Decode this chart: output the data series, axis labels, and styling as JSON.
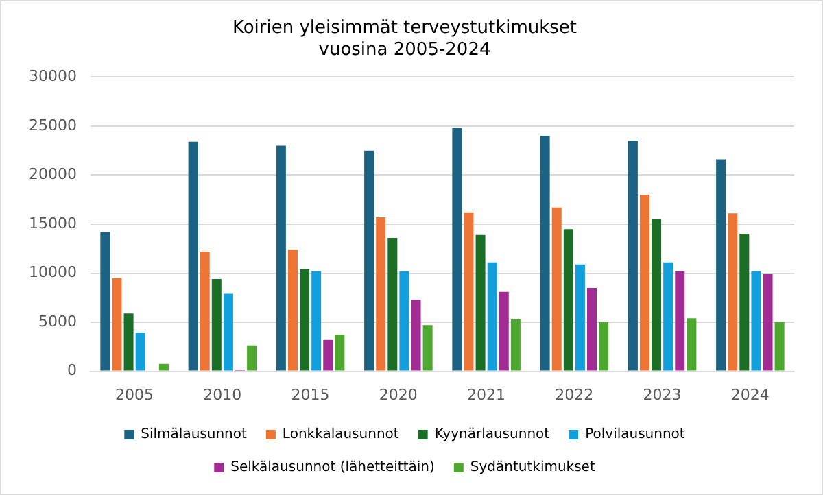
{
  "chart_data": {
    "type": "bar",
    "title": [
      "Koirien yleisimmät terveystutkimukset",
      "vuosina 2005-2024"
    ],
    "categories": [
      "2005",
      "2010",
      "2015",
      "2020",
      "2021",
      "2022",
      "2023",
      "2024"
    ],
    "series": [
      {
        "name": "Silmälausunnot",
        "color": "#1b6283",
        "values": [
          14200,
          23400,
          23000,
          22500,
          24800,
          24000,
          23500,
          21600
        ]
      },
      {
        "name": "Lonkkalausunnot",
        "color": "#ec7434",
        "values": [
          9500,
          12200,
          12400,
          15700,
          16200,
          16700,
          18000,
          16100
        ]
      },
      {
        "name": "Kyynärlausunnot",
        "color": "#1b6e26",
        "values": [
          5900,
          9400,
          10400,
          13600,
          13900,
          14500,
          15500,
          14000
        ]
      },
      {
        "name": "Polvilausunnot",
        "color": "#139fdc",
        "values": [
          3950,
          7900,
          10200,
          10200,
          11100,
          10900,
          11100,
          10200
        ]
      },
      {
        "name": "Selkälausunnot (lähetteittäin)",
        "color": "#a02b93",
        "values": [
          null,
          150,
          3200,
          7300,
          8100,
          8500,
          10200,
          9900
        ]
      },
      {
        "name": "Sydäntutkimukset",
        "color": "#4ea72e",
        "values": [
          750,
          2650,
          3750,
          4700,
          5300,
          5000,
          5400,
          5000
        ]
      }
    ],
    "ylim": [
      0,
      30000
    ],
    "yticks": [
      0,
      5000,
      10000,
      15000,
      20000,
      25000,
      30000
    ],
    "grid": "y",
    "legend": "bottom"
  }
}
